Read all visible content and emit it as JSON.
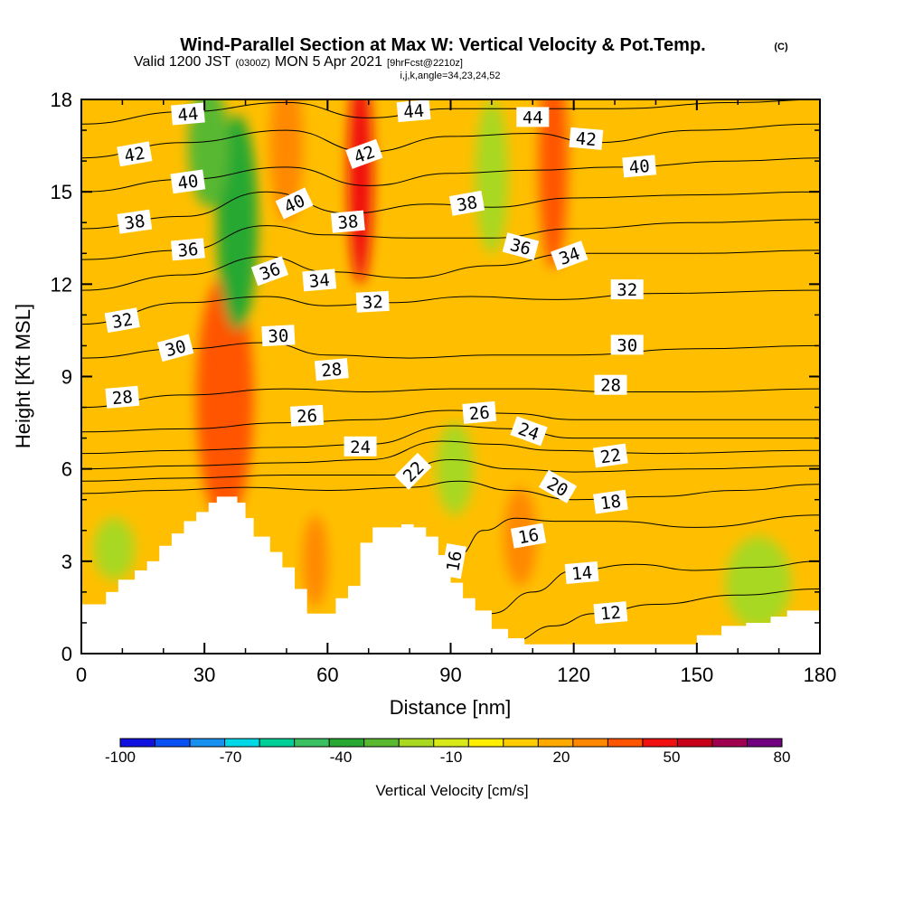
{
  "titles": {
    "main": "Wind-Parallel Section at Max W: Vertical Velocity & Pot.Temp.",
    "copyright": "(C)",
    "valid_prefix": "Valid 1200 JST",
    "valid_z": "(0300Z)",
    "valid_date": "MON 5 Apr 2021",
    "fcst": "[9hrFcst@2210z]",
    "index": "i,j,k,angle=34,23,24,52"
  },
  "chart_data": {
    "type": "heatmap",
    "xlabel": "Distance [nm]",
    "ylabel": "Height [Kft MSL]",
    "xlim": [
      0,
      180
    ],
    "ylim": [
      0,
      18
    ],
    "xticks": [
      0,
      30,
      60,
      90,
      120,
      150,
      180
    ],
    "yticks": [
      0,
      3,
      6,
      9,
      12,
      15,
      18
    ],
    "colorbar": {
      "title": "Vertical Velocity [cm/s]",
      "tick_labels": [
        -100,
        -70,
        -40,
        -10,
        20,
        50,
        80
      ],
      "min": -100,
      "max": 80,
      "colors": [
        "#1010e0",
        "#0a50f5",
        "#1890f0",
        "#00d8e8",
        "#00d098",
        "#3ac060",
        "#28a830",
        "#58b830",
        "#a8d820",
        "#d8e818",
        "#ffee00",
        "#ffcc00",
        "#ffaa00",
        "#ff8800",
        "#ff5500",
        "#f01010",
        "#c80018",
        "#a00050",
        "#700080"
      ]
    },
    "terrain_kft": [
      [
        0,
        1.6
      ],
      [
        4,
        1.6
      ],
      [
        6,
        2.0
      ],
      [
        9,
        2.4
      ],
      [
        13,
        2.7
      ],
      [
        16,
        3.0
      ],
      [
        19,
        3.5
      ],
      [
        22,
        3.9
      ],
      [
        25,
        4.3
      ],
      [
        28,
        4.6
      ],
      [
        31,
        4.9
      ],
      [
        33,
        5.1
      ],
      [
        36,
        5.1
      ],
      [
        38,
        4.9
      ],
      [
        40,
        4.4
      ],
      [
        42,
        3.8
      ],
      [
        46,
        3.3
      ],
      [
        49,
        2.8
      ],
      [
        52,
        2.1
      ],
      [
        55,
        1.3
      ],
      [
        59,
        1.3
      ],
      [
        62,
        1.8
      ],
      [
        65,
        2.2
      ],
      [
        68,
        3.6
      ],
      [
        71,
        4.1
      ],
      [
        78,
        4.2
      ],
      [
        81,
        4.1
      ],
      [
        84,
        3.8
      ],
      [
        87,
        3.2
      ],
      [
        90,
        2.3
      ],
      [
        93,
        1.8
      ],
      [
        96,
        1.4
      ],
      [
        100,
        0.8
      ],
      [
        104,
        0.5
      ],
      [
        108,
        0.3
      ],
      [
        112,
        0.3
      ],
      [
        116,
        0.3
      ],
      [
        120,
        0.3
      ],
      [
        130,
        0.3
      ],
      [
        145,
        0.3
      ],
      [
        150,
        0.6
      ],
      [
        156,
        0.9
      ],
      [
        162,
        1.0
      ],
      [
        168,
        1.2
      ],
      [
        172,
        1.4
      ],
      [
        180,
        1.4
      ]
    ],
    "theta_contours": [
      {
        "label": "12",
        "points": [
          [
            105,
            0.4
          ],
          [
            115,
            0.9
          ],
          [
            125,
            1.3
          ],
          [
            140,
            1.6
          ],
          [
            160,
            1.9
          ],
          [
            180,
            2.1
          ]
        ]
      },
      {
        "label": "14",
        "points": [
          [
            100,
            1.3
          ],
          [
            110,
            2.0
          ],
          [
            120,
            2.7
          ],
          [
            135,
            2.9
          ],
          [
            150,
            2.7
          ],
          [
            165,
            2.8
          ],
          [
            180,
            3.0
          ]
        ]
      },
      {
        "label": "16",
        "points": [
          [
            92,
            3.2
          ],
          [
            98,
            4.0
          ],
          [
            106,
            4.4
          ],
          [
            115,
            4.3
          ],
          [
            130,
            4.3
          ],
          [
            150,
            4.1
          ],
          [
            180,
            4.5
          ]
        ]
      },
      {
        "label": "18",
        "points": [
          [
            0,
            5.2
          ],
          [
            20,
            5.3
          ],
          [
            40,
            5.4
          ],
          [
            60,
            5.3
          ],
          [
            80,
            5.4
          ],
          [
            92,
            5.6
          ],
          [
            105,
            5.3
          ],
          [
            120,
            5.0
          ],
          [
            140,
            5.1
          ],
          [
            160,
            5.3
          ],
          [
            180,
            5.5
          ]
        ]
      },
      {
        "label": "20",
        "points": [
          [
            0,
            5.6
          ],
          [
            25,
            5.7
          ],
          [
            50,
            5.8
          ],
          [
            75,
            5.8
          ],
          [
            90,
            6.3
          ],
          [
            105,
            6.0
          ],
          [
            120,
            5.9
          ],
          [
            150,
            6.0
          ],
          [
            180,
            6.1
          ]
        ]
      },
      {
        "label": "22",
        "points": [
          [
            0,
            6.0
          ],
          [
            25,
            6.1
          ],
          [
            50,
            6.2
          ],
          [
            70,
            6.3
          ],
          [
            88,
            6.9
          ],
          [
            100,
            6.8
          ],
          [
            115,
            6.6
          ],
          [
            140,
            6.5
          ],
          [
            180,
            6.6
          ]
        ]
      },
      {
        "label": "24",
        "points": [
          [
            0,
            6.5
          ],
          [
            25,
            6.6
          ],
          [
            50,
            6.7
          ],
          [
            70,
            6.8
          ],
          [
            90,
            7.4
          ],
          [
            105,
            7.3
          ],
          [
            120,
            7.0
          ],
          [
            150,
            7.0
          ],
          [
            180,
            7.0
          ]
        ]
      },
      {
        "label": "26",
        "points": [
          [
            0,
            7.2
          ],
          [
            25,
            7.3
          ],
          [
            50,
            7.5
          ],
          [
            70,
            7.6
          ],
          [
            90,
            7.9
          ],
          [
            105,
            7.8
          ],
          [
            120,
            7.6
          ],
          [
            150,
            7.6
          ],
          [
            180,
            7.6
          ]
        ]
      },
      {
        "label": "28",
        "points": [
          [
            0,
            8.0
          ],
          [
            25,
            8.4
          ],
          [
            50,
            8.6
          ],
          [
            70,
            8.5
          ],
          [
            90,
            8.6
          ],
          [
            110,
            8.6
          ],
          [
            130,
            8.5
          ],
          [
            150,
            8.5
          ],
          [
            180,
            8.6
          ]
        ]
      },
      {
        "label": "30",
        "points": [
          [
            0,
            9.6
          ],
          [
            25,
            9.9
          ],
          [
            45,
            10.1
          ],
          [
            60,
            9.7
          ],
          [
            80,
            9.6
          ],
          [
            100,
            9.7
          ],
          [
            120,
            9.7
          ],
          [
            150,
            9.9
          ],
          [
            180,
            10.0
          ]
        ]
      },
      {
        "label": "32",
        "points": [
          [
            0,
            10.7
          ],
          [
            25,
            11.4
          ],
          [
            45,
            11.6
          ],
          [
            60,
            11.3
          ],
          [
            75,
            11.4
          ],
          [
            95,
            11.6
          ],
          [
            115,
            11.5
          ],
          [
            140,
            11.7
          ],
          [
            180,
            11.8
          ]
        ]
      },
      {
        "label": "34",
        "points": [
          [
            0,
            11.8
          ],
          [
            25,
            12.3
          ],
          [
            45,
            12.9
          ],
          [
            60,
            12.4
          ],
          [
            80,
            12.2
          ],
          [
            100,
            12.6
          ],
          [
            120,
            13.0
          ],
          [
            150,
            13.0
          ],
          [
            180,
            13.1
          ]
        ]
      },
      {
        "label": "36",
        "points": [
          [
            0,
            12.8
          ],
          [
            25,
            13.1
          ],
          [
            45,
            13.9
          ],
          [
            60,
            13.6
          ],
          [
            80,
            13.5
          ],
          [
            100,
            13.5
          ],
          [
            120,
            13.8
          ],
          [
            150,
            14.0
          ],
          [
            180,
            14.1
          ]
        ]
      },
      {
        "label": "38",
        "points": [
          [
            0,
            13.8
          ],
          [
            25,
            14.2
          ],
          [
            45,
            15.0
          ],
          [
            65,
            14.3
          ],
          [
            85,
            14.6
          ],
          [
            100,
            14.5
          ],
          [
            120,
            14.8
          ],
          [
            150,
            14.9
          ],
          [
            180,
            15.0
          ]
        ]
      },
      {
        "label": "40",
        "points": [
          [
            0,
            15.0
          ],
          [
            25,
            15.4
          ],
          [
            50,
            15.8
          ],
          [
            70,
            15.2
          ],
          [
            90,
            15.6
          ],
          [
            110,
            15.7
          ],
          [
            130,
            15.8
          ],
          [
            160,
            16.0
          ],
          [
            180,
            16.1
          ]
        ]
      },
      {
        "label": "42",
        "points": [
          [
            0,
            16.1
          ],
          [
            25,
            16.6
          ],
          [
            50,
            17.0
          ],
          [
            70,
            16.3
          ],
          [
            90,
            16.8
          ],
          [
            110,
            16.9
          ],
          [
            125,
            16.6
          ],
          [
            150,
            17.0
          ],
          [
            180,
            17.2
          ]
        ]
      },
      {
        "label": "44",
        "points": [
          [
            0,
            17.2
          ],
          [
            25,
            17.6
          ],
          [
            50,
            17.9
          ],
          [
            70,
            17.4
          ],
          [
            90,
            17.7
          ],
          [
            110,
            17.7
          ],
          [
            130,
            17.7
          ],
          [
            160,
            17.9
          ],
          [
            180,
            18.0
          ]
        ]
      }
    ],
    "contour_labels": [
      {
        "text": "44",
        "x": 26,
        "y": 17.5,
        "angle": -5
      },
      {
        "text": "44",
        "x": 81,
        "y": 17.6,
        "angle": -5
      },
      {
        "text": "44",
        "x": 110,
        "y": 17.4,
        "angle": 0
      },
      {
        "text": "42",
        "x": 13,
        "y": 16.2,
        "angle": -10
      },
      {
        "text": "42",
        "x": 69,
        "y": 16.2,
        "angle": -20
      },
      {
        "text": "42",
        "x": 123,
        "y": 16.7,
        "angle": 5
      },
      {
        "text": "40",
        "x": 26,
        "y": 15.3,
        "angle": -8
      },
      {
        "text": "40",
        "x": 52,
        "y": 14.6,
        "angle": -25
      },
      {
        "text": "40",
        "x": 136,
        "y": 15.8,
        "angle": -5
      },
      {
        "text": "38",
        "x": 13,
        "y": 14.0,
        "angle": -8
      },
      {
        "text": "38",
        "x": 65,
        "y": 14.0,
        "angle": -5
      },
      {
        "text": "38",
        "x": 94,
        "y": 14.6,
        "angle": -10
      },
      {
        "text": "36",
        "x": 26,
        "y": 13.1,
        "angle": -5
      },
      {
        "text": "36",
        "x": 46,
        "y": 12.4,
        "angle": -20
      },
      {
        "text": "36",
        "x": 107,
        "y": 13.2,
        "angle": 15
      },
      {
        "text": "34",
        "x": 58,
        "y": 12.1,
        "angle": -5
      },
      {
        "text": "34",
        "x": 119,
        "y": 12.9,
        "angle": -20
      },
      {
        "text": "32",
        "x": 71,
        "y": 11.4,
        "angle": -3
      },
      {
        "text": "32",
        "x": 133,
        "y": 11.8,
        "angle": 0
      },
      {
        "text": "32",
        "x": 10,
        "y": 10.8,
        "angle": -10
      },
      {
        "text": "30",
        "x": 23,
        "y": 9.9,
        "angle": -15
      },
      {
        "text": "30",
        "x": 48,
        "y": 10.3,
        "angle": -3
      },
      {
        "text": "30",
        "x": 133,
        "y": 10.0,
        "angle": 0
      },
      {
        "text": "28",
        "x": 61,
        "y": 9.2,
        "angle": -5
      },
      {
        "text": "28",
        "x": 129,
        "y": 8.7,
        "angle": 0
      },
      {
        "text": "28",
        "x": 10,
        "y": 8.3,
        "angle": -5
      },
      {
        "text": "26",
        "x": 55,
        "y": 7.7,
        "angle": -3
      },
      {
        "text": "26",
        "x": 97,
        "y": 7.8,
        "angle": -5
      },
      {
        "text": "24",
        "x": 68,
        "y": 6.7,
        "angle": 0
      },
      {
        "text": "24",
        "x": 109,
        "y": 7.2,
        "angle": 20
      },
      {
        "text": "22",
        "x": 81,
        "y": 5.9,
        "angle": -45
      },
      {
        "text": "22",
        "x": 129,
        "y": 6.4,
        "angle": -8
      },
      {
        "text": "20",
        "x": 116,
        "y": 5.4,
        "angle": 30
      },
      {
        "text": "18",
        "x": 129,
        "y": 4.9,
        "angle": -8
      },
      {
        "text": "16",
        "x": 109,
        "y": 3.8,
        "angle": -10
      },
      {
        "text": "16",
        "x": 91,
        "y": 3.0,
        "angle": -80
      },
      {
        "text": "14",
        "x": 122,
        "y": 2.6,
        "angle": -5
      },
      {
        "text": "12",
        "x": 129,
        "y": 1.3,
        "angle": -5
      }
    ],
    "velocity_features": [
      {
        "type": "updraft",
        "cm_s": 55,
        "x": 34,
        "y": 7.5,
        "rx": 4,
        "ry": 2.2
      },
      {
        "type": "updraft",
        "cm_s": 35,
        "x": 35,
        "y": 8.3,
        "rx": 7,
        "ry": 4.0
      },
      {
        "type": "updraft",
        "cm_s": 65,
        "x": 68,
        "y": 17.0,
        "rx": 2.5,
        "ry": 2.0
      },
      {
        "type": "updraft",
        "cm_s": 45,
        "x": 68,
        "y": 15.5,
        "rx": 3.0,
        "ry": 3.5
      },
      {
        "type": "updraft",
        "cm_s": 35,
        "x": 115,
        "y": 16.0,
        "rx": 3.5,
        "ry": 3.5
      },
      {
        "type": "updraft",
        "cm_s": 30,
        "x": 50,
        "y": 16.5,
        "rx": 4.0,
        "ry": 2.5
      },
      {
        "type": "updraft",
        "cm_s": 30,
        "x": 57,
        "y": 3.0,
        "rx": 3.0,
        "ry": 1.5
      },
      {
        "type": "updraft",
        "cm_s": 30,
        "x": 107,
        "y": 3.8,
        "rx": 4.0,
        "ry": 1.6
      },
      {
        "type": "downdraft",
        "cm_s": -40,
        "x": 38,
        "y": 14.0,
        "rx": 5.0,
        "ry": 3.5
      },
      {
        "type": "downdraft",
        "cm_s": -30,
        "x": 31,
        "y": 16.5,
        "rx": 5.0,
        "ry": 2.0
      },
      {
        "type": "downdraft",
        "cm_s": -20,
        "x": 100,
        "y": 15.5,
        "rx": 4.0,
        "ry": 2.5
      },
      {
        "type": "downdraft",
        "cm_s": -20,
        "x": 91,
        "y": 6.0,
        "rx": 4.5,
        "ry": 1.5
      },
      {
        "type": "downdraft",
        "cm_s": -15,
        "x": 165,
        "y": 2.3,
        "rx": 8.0,
        "ry": 1.5
      },
      {
        "type": "downdraft",
        "cm_s": -15,
        "x": 8,
        "y": 3.4,
        "rx": 5.0,
        "ry": 1.0
      }
    ]
  }
}
